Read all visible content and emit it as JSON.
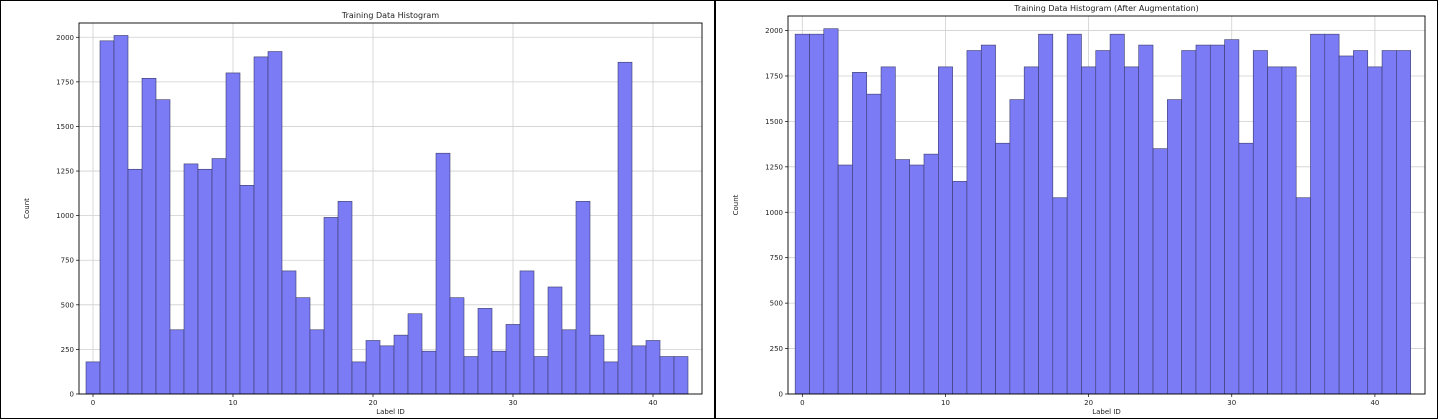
{
  "chart_data": [
    {
      "type": "bar",
      "title": "Training Data Histogram",
      "xlabel": "Label ID",
      "ylabel": "Count",
      "xlim": [
        -1,
        43.5
      ],
      "ylim": [
        0,
        2080
      ],
      "grid": true,
      "x_ticks": [
        0,
        10,
        20,
        30,
        40
      ],
      "y_ticks": [
        0,
        250,
        500,
        750,
        1000,
        1250,
        1500,
        1750,
        2000
      ],
      "categories": [
        0,
        1,
        2,
        3,
        4,
        5,
        6,
        7,
        8,
        9,
        10,
        11,
        12,
        13,
        14,
        15,
        16,
        17,
        18,
        19,
        20,
        21,
        22,
        23,
        24,
        25,
        26,
        27,
        28,
        29,
        30,
        31,
        32,
        33,
        34,
        35,
        36,
        37,
        38,
        39,
        40,
        41,
        42
      ],
      "values": [
        180,
        1980,
        2010,
        1260,
        1770,
        1650,
        360,
        1290,
        1260,
        1320,
        1800,
        1170,
        1890,
        1920,
        690,
        540,
        360,
        990,
        1080,
        180,
        300,
        270,
        330,
        450,
        240,
        1350,
        540,
        210,
        480,
        240,
        390,
        690,
        210,
        600,
        360,
        1080,
        330,
        180,
        1860,
        270,
        300,
        210,
        210
      ],
      "color": "#7b7bf5",
      "edge_color": "#3a3a6a"
    },
    {
      "type": "bar",
      "title": "Training Data Histogram (After Augmentation)",
      "xlabel": "Label ID",
      "ylabel": "Count",
      "xlim": [
        -1,
        43.5
      ],
      "ylim": [
        0,
        2080
      ],
      "grid": true,
      "x_ticks": [
        0,
        10,
        20,
        30,
        40
      ],
      "y_ticks": [
        0,
        250,
        500,
        750,
        1000,
        1250,
        1500,
        1750,
        2000
      ],
      "categories": [
        0,
        1,
        2,
        3,
        4,
        5,
        6,
        7,
        8,
        9,
        10,
        11,
        12,
        13,
        14,
        15,
        16,
        17,
        18,
        19,
        20,
        21,
        22,
        23,
        24,
        25,
        26,
        27,
        28,
        29,
        30,
        31,
        32,
        33,
        34,
        35,
        36,
        37,
        38,
        39,
        40,
        41,
        42
      ],
      "values": [
        1980,
        1980,
        2010,
        1260,
        1770,
        1650,
        1800,
        1290,
        1260,
        1320,
        1800,
        1170,
        1890,
        1920,
        1380,
        1620,
        1800,
        1980,
        1080,
        1980,
        1800,
        1890,
        1980,
        1800,
        1920,
        1350,
        1620,
        1890,
        1920,
        1920,
        1950,
        1380,
        1890,
        1800,
        1800,
        1080,
        1980,
        1980,
        1860,
        1890,
        1800,
        1890,
        1890
      ],
      "color": "#7b7bf5",
      "edge_color": "#3a3a6a"
    }
  ]
}
